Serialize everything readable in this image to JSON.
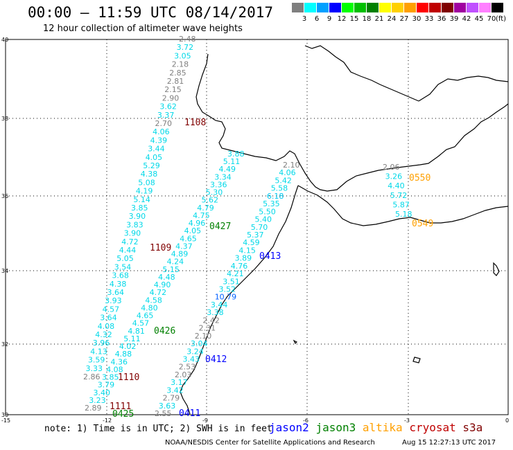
{
  "header": {
    "title": "00:00 – 11:59 UTC 08/14/2017",
    "subtitle": "12 hour collection of altimeter wave heights"
  },
  "legend": {
    "colors": [
      "#7f7f7f",
      "#00ffff",
      "#00a0ff",
      "#0000ff",
      "#00ff00",
      "#00c000",
      "#008000",
      "#ffff00",
      "#ffd000",
      "#ffa000",
      "#ff0000",
      "#c00000",
      "#800000",
      "#a000a0",
      "#c050ff",
      "#ff80ff",
      "#000000"
    ],
    "labels": [
      "3",
      "6",
      "9",
      "12",
      "15",
      "18",
      "21",
      "24",
      "27",
      "30",
      "33",
      "36",
      "39",
      "42",
      "45",
      "70"
    ],
    "unit": "(ft)"
  },
  "axes": {
    "lat_labels": [
      "40",
      "38",
      "36",
      "34",
      "32",
      "30"
    ],
    "lon_labels": [
      "-15",
      "-12",
      "-9",
      "-6",
      "-3",
      "0"
    ]
  },
  "passes": [
    {
      "label": "1108",
      "color": "#800000"
    },
    {
      "label": "1109",
      "color": "#800000"
    },
    {
      "label": "1110",
      "color": "#800000"
    },
    {
      "label": "1111",
      "color": "#800000"
    },
    {
      "label": "0427",
      "color": "#008000"
    },
    {
      "label": "0426",
      "color": "#008000"
    },
    {
      "label": "0425",
      "color": "#008000"
    },
    {
      "label": "0413",
      "color": "#0000ff"
    },
    {
      "label": "0412",
      "color": "#0000ff"
    },
    {
      "label": "0411",
      "color": "#0000ff"
    },
    {
      "label": "0550",
      "color": "#ffa000"
    },
    {
      "label": "0549",
      "color": "#ffa000"
    }
  ],
  "tracks": {
    "t1": [
      "2.48",
      "3.72",
      "3.05",
      "2.18",
      "2.85",
      "2.81",
      "2.15",
      "2.90",
      "3.62",
      "3.37",
      "2.70",
      "4.06",
      "4.39",
      "3.44",
      "4.05",
      "5.29",
      "4.38",
      "5.08",
      "4.19",
      "5.14",
      "3.85",
      "3.90",
      "3.83",
      "3.90",
      "4.72",
      "4.44",
      "5.05",
      "3.54",
      "3.68",
      "4.38",
      "3.64",
      "3.93",
      "4.57",
      "3.64",
      "4.08",
      "4.32",
      "3.96",
      "4.13",
      "3.59",
      "3.33",
      "2.86"
    ],
    "t2": [
      "3.88",
      "5.11",
      "4.49",
      "3.34",
      "3.36",
      "5.30",
      "5.62",
      "4.79",
      "4.75",
      "4.96",
      "4.05",
      "4.65",
      "4.37",
      "4.89",
      "4.24",
      "5.15",
      "4.48",
      "4.90",
      "4.72",
      "4.58",
      "4.80",
      "4.65",
      "4.57",
      "4.81",
      "5.11",
      "4.02",
      "4.88",
      "4.36",
      "4.08",
      "3.85",
      "3.79",
      "3.40",
      "3.23",
      "2.89"
    ],
    "t3": [
      "2.10",
      "4.06",
      "5.42",
      "5.58",
      "6.18",
      "5.35",
      "5.50",
      "5.40",
      "5.70",
      "5.37",
      "4.59",
      "4.15",
      "3.89",
      "4.76",
      "4.21",
      "3.51",
      "3.52",
      "10.79",
      "3.44",
      "3.38",
      "2.42",
      "2.31",
      "2.10",
      "3.04",
      "3.24",
      "3.43",
      "2.53",
      "2.03",
      "3.17",
      "3.42",
      "2.79",
      "3.63",
      "2.55"
    ],
    "t4": [
      "2.06",
      "3.26",
      "4.40",
      "5.72",
      "5.87",
      "5.18"
    ]
  },
  "notes": {
    "note": "note: 1) Time is in UTC; 2) SWH is in feet",
    "credit": "NOAA/NESDIS Center for Satellite Applications and Research",
    "credit_time": "Aug 15 12:27:13 UTC 2017"
  },
  "satellites": [
    {
      "name": "jason2",
      "color": "#0000ff"
    },
    {
      "name": "jason3",
      "color": "#008000"
    },
    {
      "name": "altika",
      "color": "#ffa000"
    },
    {
      "name": "cryosat",
      "color": "#c00000"
    },
    {
      "name": "s3a",
      "color": "#800000"
    }
  ]
}
